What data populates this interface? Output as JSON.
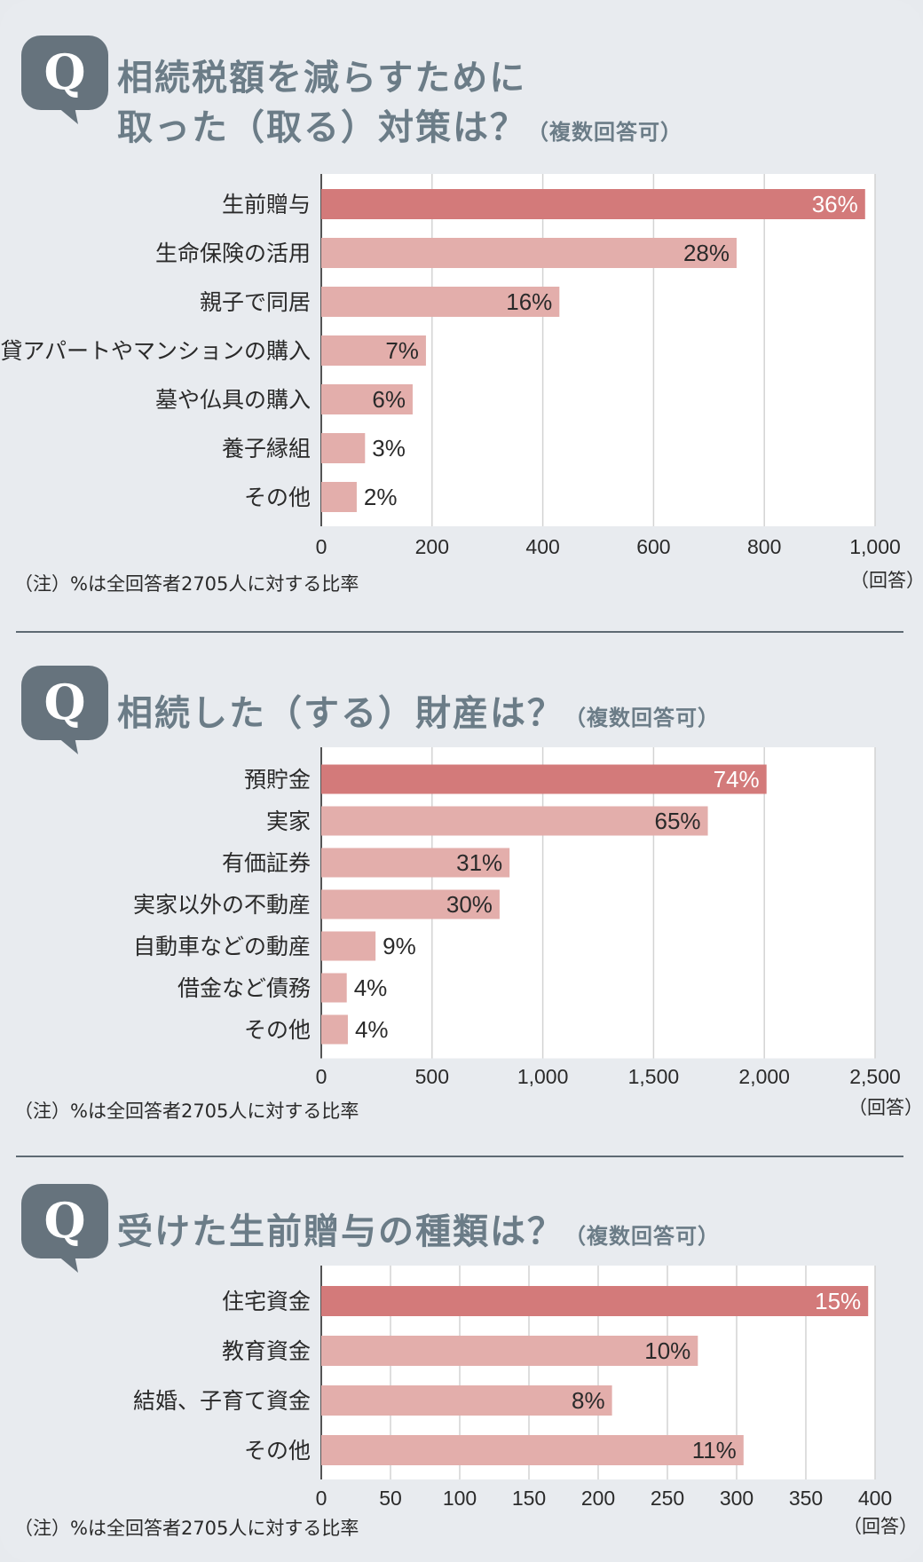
{
  "colors": {
    "highlight_bar": "#d37a7a",
    "bar": "#e3aeab",
    "grid": "#d3d3d3",
    "plot_bg": "#ffffff",
    "badge": "#66737d",
    "title": "#6b7c87"
  },
  "badge_icon": "speech-bubble-q-icon",
  "chart_data": [
    {
      "type": "bar",
      "orientation": "horizontal",
      "badge": "Q",
      "title_lines": [
        "相続税額を減らすために",
        "取った（取る）対策は？"
      ],
      "title_note": "（複数回答可）",
      "categories": [
        "生前贈与",
        "生命保険の活用",
        "親子で同居",
        "賃貸アパートやマンションの購入",
        "墓や仏具の購入",
        "養子縁組",
        "その他"
      ],
      "values": [
        982,
        750,
        430,
        189,
        165,
        79,
        64
      ],
      "labels": [
        "36%",
        "28%",
        "16%",
        "7%",
        "6%",
        "3%",
        "2%"
      ],
      "highlight_index": 0,
      "xlim": [
        0,
        1000
      ],
      "xticks": [
        "0",
        "200",
        "400",
        "600",
        "800",
        "1,000"
      ],
      "xtick_values": [
        0,
        200,
        400,
        600,
        800,
        1000
      ],
      "unit": "（回答）",
      "grid": true,
      "footnote": "（注）%は全回答者2705人に対する比率"
    },
    {
      "type": "bar",
      "orientation": "horizontal",
      "badge": "Q",
      "title_lines": [
        "相続した（する）財産は？"
      ],
      "title_note": "（複数回答可）",
      "categories": [
        "預貯金",
        "実家",
        "有価証券",
        "実家以外の不動産",
        "自動車などの動産",
        "借金など債務",
        "その他"
      ],
      "values": [
        2010,
        1745,
        850,
        805,
        245,
        115,
        120
      ],
      "labels": [
        "74%",
        "65%",
        "31%",
        "30%",
        "9%",
        "4%",
        "4%"
      ],
      "highlight_index": 0,
      "xlim": [
        0,
        2500
      ],
      "xticks": [
        "0",
        "500",
        "1,000",
        "1,500",
        "2,000",
        "2,500"
      ],
      "xtick_values": [
        0,
        500,
        1000,
        1500,
        2000,
        2500
      ],
      "unit": "（回答）",
      "grid": true,
      "footnote": "（注）%は全回答者2705人に対する比率"
    },
    {
      "type": "bar",
      "orientation": "horizontal",
      "badge": "Q",
      "title_lines": [
        "受けた生前贈与の種類は？"
      ],
      "title_note": "（複数回答可）",
      "categories": [
        "住宅資金",
        "教育資金",
        "結婚、子育て資金",
        "その他"
      ],
      "values": [
        395,
        272,
        210,
        305
      ],
      "labels": [
        "15%",
        "10%",
        "8%",
        "11%"
      ],
      "highlight_index": 0,
      "xlim": [
        0,
        400
      ],
      "xticks": [
        "0",
        "50",
        "100",
        "150",
        "200",
        "250",
        "300",
        "350",
        "400"
      ],
      "xtick_values": [
        0,
        50,
        100,
        150,
        200,
        250,
        300,
        350,
        400
      ],
      "unit": "（回答）",
      "grid": true,
      "footnote": "（注）%は全回答者2705人に対する比率"
    }
  ]
}
